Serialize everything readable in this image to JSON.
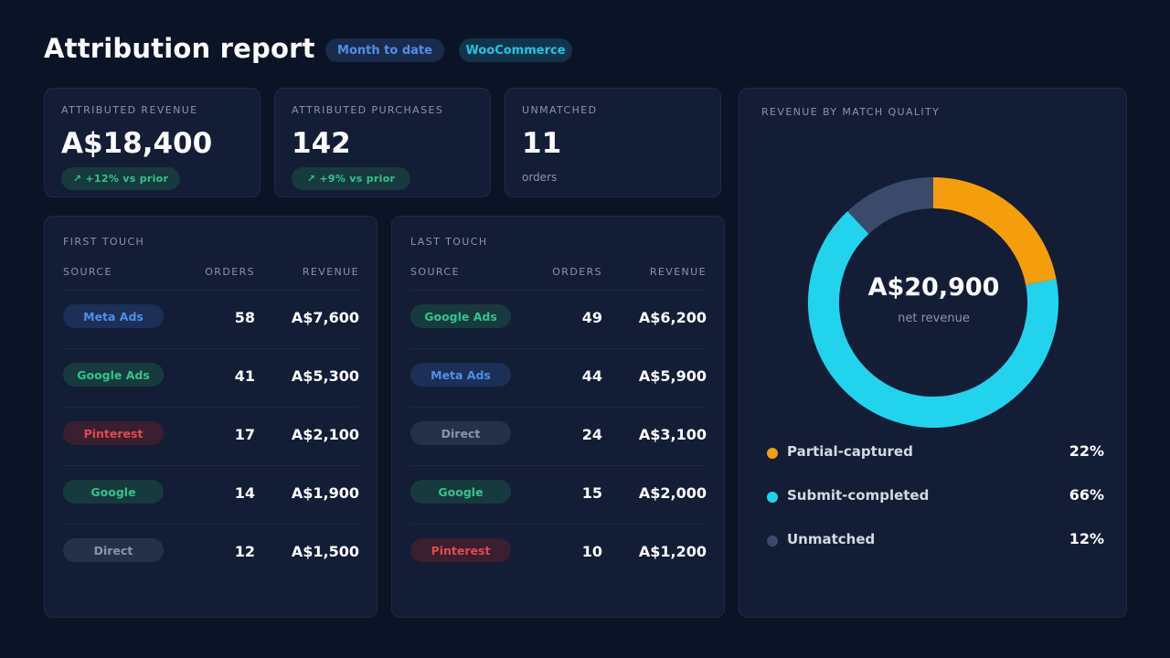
{
  "header": {
    "title": "Attribution report",
    "period_label": "Month to date",
    "source_label": "WooCommerce"
  },
  "kpis": {
    "revenue": {
      "label": "ATTRIBUTED REVENUE",
      "value": "A$18,400",
      "delta": "↗ +12% vs prior"
    },
    "purchases": {
      "label": "ATTRIBUTED PURCHASES",
      "value": "142",
      "delta": "↗ +9% vs prior"
    },
    "unmatched": {
      "label": "UNMATCHED",
      "value": "11",
      "sub": "orders"
    }
  },
  "first_touch": {
    "title": "FIRST TOUCH",
    "columns": {
      "source": "SOURCE",
      "orders": "ORDERS",
      "revenue": "REVENUE"
    },
    "rows": [
      {
        "source": "Meta Ads",
        "orders": "58",
        "revenue": "A$7,600",
        "style": "meta"
      },
      {
        "source": "Google Ads",
        "orders": "41",
        "revenue": "A$5,300",
        "style": "google"
      },
      {
        "source": "Pinterest",
        "orders": "17",
        "revenue": "A$2,100",
        "style": "pinterest"
      },
      {
        "source": "Google",
        "orders": "14",
        "revenue": "A$1,900",
        "style": "google"
      },
      {
        "source": "Direct",
        "orders": "12",
        "revenue": "A$1,500",
        "style": "direct"
      }
    ]
  },
  "last_touch": {
    "title": "LAST TOUCH",
    "columns": {
      "source": "SOURCE",
      "orders": "ORDERS",
      "revenue": "REVENUE"
    },
    "rows": [
      {
        "source": "Google Ads",
        "orders": "49",
        "revenue": "A$6,200",
        "style": "google"
      },
      {
        "source": "Meta Ads",
        "orders": "44",
        "revenue": "A$5,900",
        "style": "meta"
      },
      {
        "source": "Direct",
        "orders": "24",
        "revenue": "A$3,100",
        "style": "direct"
      },
      {
        "source": "Google",
        "orders": "15",
        "revenue": "A$2,000",
        "style": "google"
      },
      {
        "source": "Pinterest",
        "orders": "10",
        "revenue": "A$1,200",
        "style": "pinterest"
      }
    ]
  },
  "pill_styles": {
    "meta": {
      "bg": "#1b2f57",
      "fg": "#4f8fe8"
    },
    "google": {
      "bg": "#173a3e",
      "fg": "#34c48b"
    },
    "pinterest": {
      "bg": "#3a1f30",
      "fg": "#e5484d"
    },
    "direct": {
      "bg": "#253149",
      "fg": "#8c95a8"
    }
  },
  "donut": {
    "title": "REVENUE BY MATCH QUALITY",
    "center_value": "A$20,900",
    "center_label": "net revenue",
    "segments": [
      {
        "label": "Partial-captured",
        "pct_label": "22%",
        "value": 22,
        "color": "#f59e0b"
      },
      {
        "label": "Submit-completed",
        "pct_label": "66%",
        "value": 66,
        "color": "#22d3ee"
      },
      {
        "label": "Unmatched",
        "pct_label": "12%",
        "value": 12,
        "color": "#3b4a6b"
      }
    ]
  }
}
